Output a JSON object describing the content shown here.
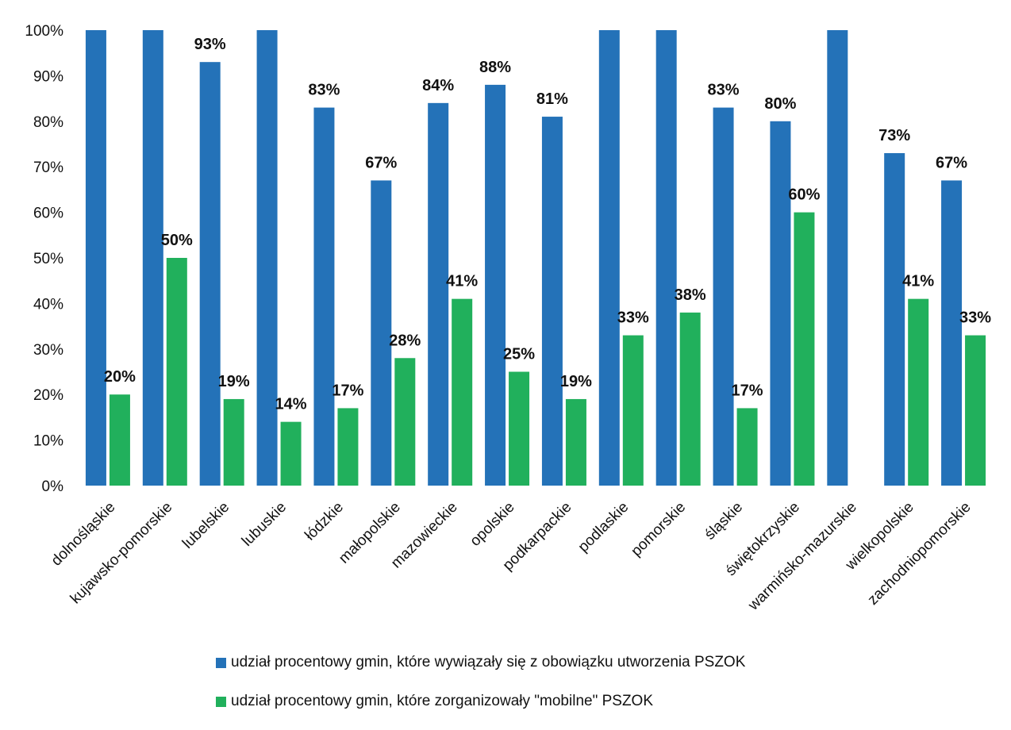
{
  "chart_data": {
    "type": "bar",
    "title": "",
    "xlabel": "",
    "ylabel": "",
    "ylim": [
      0,
      100
    ],
    "yticks": [
      "0%",
      "10%",
      "20%",
      "30%",
      "40%",
      "50%",
      "60%",
      "70%",
      "80%",
      "90%",
      "100%"
    ],
    "categories": [
      "dolnośląskie",
      "kujawsko-pomorskie",
      "lubelskie",
      "lubuskie",
      "łódzkie",
      "małopolskie",
      "mazowieckie",
      "opolskie",
      "podkarpackie",
      "podlaskie",
      "pomorskie",
      "śląskie",
      "świętokrzyskie",
      "warmińsko-mazurskie",
      "wielkopolskie",
      "zachodniopomorskie"
    ],
    "series": [
      {
        "name": "udział procentowy gmin, które wywiązały się z obowiązku utworzenia PSZOK",
        "color": "#2472b8",
        "values": [
          100,
          100,
          93,
          100,
          83,
          67,
          84,
          88,
          81,
          100,
          100,
          83,
          80,
          100,
          73,
          67
        ],
        "labels": [
          "",
          "",
          "93%",
          "",
          "83%",
          "67%",
          "84%",
          "88%",
          "81%",
          "",
          "",
          "83%",
          "80%",
          "",
          "73%",
          "67%"
        ]
      },
      {
        "name": "udział procentowy gmin, które zorganizowały \"mobilne\" PSZOK",
        "color": "#21b05c",
        "values": [
          20,
          50,
          19,
          14,
          17,
          28,
          41,
          25,
          19,
          33,
          38,
          17,
          60,
          0,
          41,
          33
        ],
        "labels": [
          "20%",
          "50%",
          "19%",
          "14%",
          "17%",
          "28%",
          "41%",
          "25%",
          "19%",
          "33%",
          "38%",
          "17%",
          "60%",
          "",
          "41%",
          "33%"
        ]
      }
    ],
    "legend_position": "bottom",
    "grid": false
  }
}
